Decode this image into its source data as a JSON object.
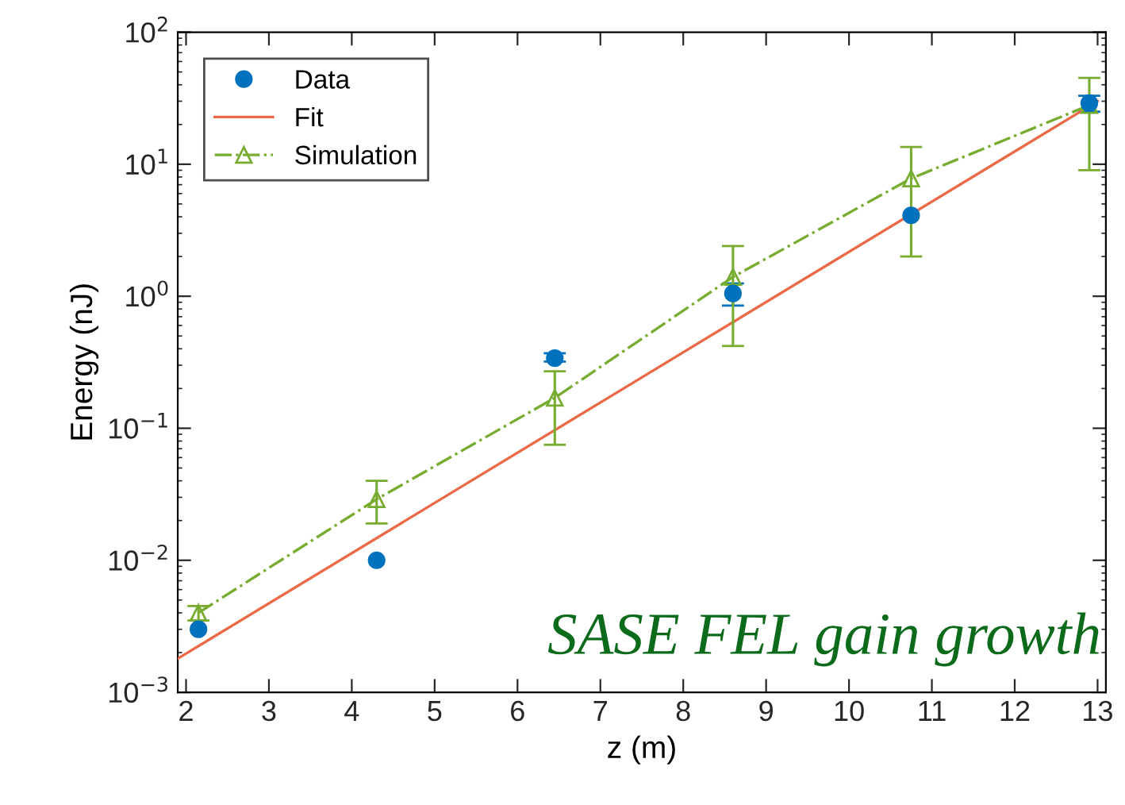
{
  "chart_data": {
    "type": "scatter",
    "xlabel": "z (m)",
    "ylabel": "Energy (nJ)",
    "log": "y",
    "grid": false,
    "legend": "top left",
    "xlim": [
      1.9,
      13.1
    ],
    "xticks": [
      2,
      3,
      4,
      5,
      6,
      7,
      8,
      9,
      10,
      11,
      12,
      13
    ],
    "ylim": [
      0.001,
      100
    ],
    "yticks": [
      {
        "value": 0.001,
        "label": "10$^{−3}$"
      },
      {
        "value": 0.01,
        "label": "10$^{−2}$"
      },
      {
        "value": 0.1,
        "label": "10$^{−1}$"
      },
      {
        "value": 1,
        "label": "10$^{0}$"
      },
      {
        "value": 10,
        "label": "10$^{1}$"
      },
      {
        "value": 100,
        "label": "10$^{2}$"
      }
    ],
    "series": [
      {
        "name": "Data",
        "color": "#0072bd",
        "marker": "circle",
        "x": [
          2.15,
          4.3,
          6.45,
          8.6,
          10.75,
          12.9
        ],
        "values": [
          0.003,
          0.01,
          0.34,
          1.05,
          4.1,
          29
        ],
        "errors": [
          null,
          null,
          [
            0.32,
            0.37
          ],
          [
            0.85,
            1.25
          ],
          null,
          [
            25,
            33
          ]
        ]
      },
      {
        "name": "Fit",
        "type": "line",
        "color": "#ea6a47",
        "marker": "none",
        "line_style": "solid",
        "x": [
          1.9,
          13.0
        ],
        "values": [
          0.0018,
          30
        ]
      },
      {
        "name": "Simulation",
        "type": "line",
        "color": "#77ac30",
        "marker": "triangle",
        "line_style": "dashdot",
        "x": [
          2.15,
          4.3,
          6.45,
          8.6,
          10.75,
          12.9
        ],
        "values": [
          0.004,
          0.029,
          0.17,
          1.4,
          7.8,
          28
        ],
        "errors": [
          [
            0.0035,
            0.0045
          ],
          [
            0.019,
            0.04
          ],
          [
            0.075,
            0.27
          ],
          [
            0.42,
            2.4
          ],
          [
            2.0,
            13.5
          ],
          [
            9,
            45
          ]
        ]
      }
    ],
    "annotations": [
      "SASE FEL gain growth"
    ]
  }
}
